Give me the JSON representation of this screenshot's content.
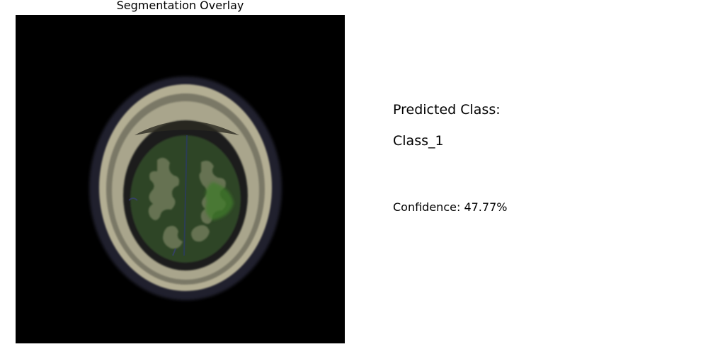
{
  "overlay_panel": {
    "title": "Segmentation Overlay",
    "image_description_icon": "brain-mri-scan-with-green-segmentation"
  },
  "prediction": {
    "heading": "Predicted Class:",
    "class_name": "Class_1",
    "confidence_text": "Confidence: 47.77%",
    "confidence_value": 0.4777
  },
  "colors": {
    "background": "#ffffff",
    "image_background": "#000000",
    "segmentation_tint": "#3f6b2a",
    "skull_tone": "#b9b59a",
    "text": "#000000"
  }
}
